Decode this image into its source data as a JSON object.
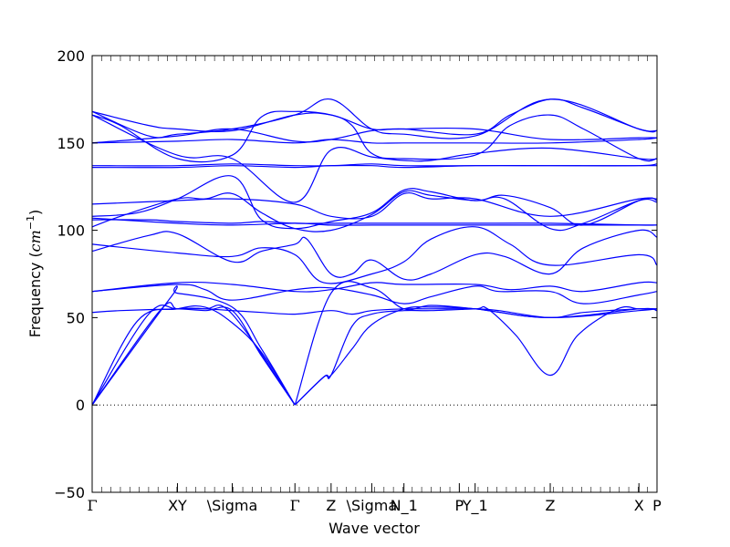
{
  "chart_data": {
    "type": "line",
    "title": "",
    "xlabel": "Wave vector",
    "ylabel": "Frequency ($cm^{-1}$)",
    "ylabel_parts": {
      "main": "Frequency (",
      "unit_base": "cm",
      "unit_exp": "−1",
      "close": ")"
    },
    "ylim": [
      -50,
      200
    ],
    "yticks": [
      -50,
      0,
      50,
      100,
      150,
      200
    ],
    "xlim": [
      0,
      1
    ],
    "xticks": [
      {
        "label": "Γ",
        "pos": 0.0
      },
      {
        "label": "XY",
        "pos": 0.151
      },
      {
        "label": "\\Sigma",
        "pos": 0.248
      },
      {
        "label": "Γ",
        "pos": 0.359
      },
      {
        "label": "Z",
        "pos": 0.423
      },
      {
        "label": "\\Sigma",
        "pos": 0.495
      },
      {
        "label": "N_1",
        "pos": 0.552
      },
      {
        "label": "P",
        "pos": 0.65
      },
      {
        "label": "Y_1",
        "pos": 0.678
      },
      {
        "label": "Z",
        "pos": 0.811
      },
      {
        "label": "X",
        "pos": 0.968
      },
      {
        "label": "P",
        "pos": 1.0
      }
    ],
    "zero_line": true,
    "line_color": "#0000ff",
    "series": [
      {
        "x": [
          0,
          0.1,
          0.151,
          0.2,
          0.248,
          0.359
        ],
        "y": [
          0,
          52,
          55,
          55,
          52,
          0
        ]
      },
      {
        "x": [
          0,
          0.12,
          0.151,
          0.2,
          0.248,
          0.3,
          0.359
        ],
        "y": [
          0,
          54,
          55,
          54,
          54,
          28,
          0
        ]
      },
      {
        "x": [
          0,
          0.08,
          0.151,
          0.2,
          0.248,
          0.3,
          0.359
        ],
        "y": [
          0,
          48,
          55,
          56,
          47,
          30,
          0
        ]
      },
      {
        "x": [
          0,
          0.14,
          0.151,
          0.248,
          0.3,
          0.359
        ],
        "y": [
          0,
          62,
          64,
          56,
          32,
          0
        ]
      },
      {
        "x": [
          0.359,
          0.41,
          0.423,
          0.46,
          0.495,
          0.552,
          0.6,
          0.678,
          0.7,
          0.75,
          0.811,
          0.86,
          0.93,
          0.968,
          1.0
        ],
        "y": [
          0,
          16,
          17,
          45,
          52,
          54,
          54,
          55,
          55,
          40,
          17,
          40,
          55,
          55,
          55
        ]
      },
      {
        "x": [
          0.359,
          0.41,
          0.423,
          0.46,
          0.495,
          0.552,
          0.6,
          0.678,
          0.811,
          0.968,
          1.0
        ],
        "y": [
          0,
          16,
          17,
          32,
          46,
          55,
          56,
          55,
          50,
          55,
          54
        ]
      },
      {
        "x": [
          0.359,
          0.423,
          0.495,
          0.552,
          0.6,
          0.678,
          0.811,
          0.968,
          1.0
        ],
        "y": [
          0,
          64,
          67,
          55,
          57,
          55,
          50,
          54,
          55
        ]
      },
      {
        "x": [
          0,
          0.05,
          0.151,
          0.2,
          0.248,
          0.3,
          0.359,
          0.423,
          0.46,
          0.495,
          0.552,
          0.6,
          0.678,
          0.72,
          0.811,
          0.87,
          0.968,
          1.0
        ],
        "y": [
          53,
          54,
          55,
          55,
          54,
          53,
          52,
          54,
          52,
          54,
          55,
          55,
          55,
          54,
          50,
          53,
          55,
          55
        ]
      },
      {
        "x": [
          0,
          0.151,
          0.248,
          0.359,
          0.423,
          0.495,
          0.552,
          0.678,
          0.74,
          0.811,
          0.87,
          0.968,
          1.0
        ],
        "y": [
          65,
          70,
          69,
          65,
          66,
          70,
          69,
          69,
          66,
          68,
          65,
          70,
          70
        ]
      },
      {
        "x": [
          0,
          0.151,
          0.2,
          0.248,
          0.359,
          0.423,
          0.495,
          0.552,
          0.6,
          0.678,
          0.72,
          0.811,
          0.87,
          0.968,
          1.0
        ],
        "y": [
          65,
          69,
          66,
          60,
          66,
          67,
          63,
          58,
          62,
          68,
          65,
          65,
          58,
          63,
          65
        ]
      },
      {
        "x": [
          0,
          0.1,
          0.151,
          0.248,
          0.3,
          0.359,
          0.38,
          0.423,
          0.46,
          0.495,
          0.552,
          0.6,
          0.678,
          0.73,
          0.811,
          0.87,
          0.968,
          1.0
        ],
        "y": [
          88,
          97,
          98,
          82,
          88,
          92,
          95,
          75,
          75,
          83,
          72,
          75,
          86,
          85,
          75,
          90,
          100,
          96
        ]
      },
      {
        "x": [
          0,
          0.151,
          0.248,
          0.3,
          0.359,
          0.41,
          0.495,
          0.552,
          0.6,
          0.678,
          0.74,
          0.811,
          0.968,
          1.0
        ],
        "y": [
          92,
          87,
          85,
          90,
          86,
          70,
          75,
          82,
          95,
          102,
          92,
          80,
          86,
          80
        ]
      },
      {
        "x": [
          0,
          0.151,
          0.248,
          0.359,
          0.423,
          0.495,
          0.552,
          0.6,
          0.678,
          0.811,
          0.968,
          1.0
        ],
        "y": [
          107,
          104,
          103,
          104,
          103,
          103,
          103,
          103,
          103,
          103,
          103,
          103
        ]
      },
      {
        "x": [
          0,
          0.1,
          0.151,
          0.248,
          0.3,
          0.359,
          0.423,
          0.495,
          0.552,
          0.6,
          0.678,
          0.811,
          0.968,
          1.0
        ],
        "y": [
          106,
          106,
          105,
          104,
          105,
          104,
          104,
          104,
          104,
          104,
          104,
          104,
          103,
          103
        ]
      },
      {
        "x": [
          0,
          0.05,
          0.151,
          0.2,
          0.248,
          0.3,
          0.359,
          0.423,
          0.495,
          0.552,
          0.6,
          0.678,
          0.73,
          0.811,
          0.87,
          0.968,
          1.0
        ],
        "y": [
          102,
          108,
          118,
          118,
          121,
          110,
          101,
          100,
          109,
          122,
          120,
          117,
          118,
          101,
          104,
          117,
          116
        ]
      },
      {
        "x": [
          0,
          0.151,
          0.248,
          0.359,
          0.423,
          0.495,
          0.552,
          0.6,
          0.678,
          0.811,
          0.968,
          1.0
        ],
        "y": [
          115,
          117,
          118,
          115,
          108,
          108,
          121,
          118,
          118,
          108,
          118,
          117
        ]
      },
      {
        "x": [
          0,
          0.08,
          0.151,
          0.248,
          0.3,
          0.359,
          0.423,
          0.495,
          0.552,
          0.6,
          0.678,
          0.73,
          0.811,
          0.87,
          0.968,
          1.0
        ],
        "y": [
          108,
          110,
          118,
          131,
          106,
          101,
          105,
          110,
          123,
          122,
          117,
          120,
          113,
          103,
          117,
          118
        ]
      },
      {
        "x": [
          0,
          0.151,
          0.248,
          0.359,
          0.423,
          0.495,
          0.552,
          0.678,
          0.811,
          0.968,
          1.0
        ],
        "y": [
          137,
          137,
          138,
          137,
          137,
          138,
          137,
          137,
          137,
          137,
          137
        ]
      },
      {
        "x": [
          0,
          0.151,
          0.248,
          0.359,
          0.423,
          0.495,
          0.552,
          0.678,
          0.811,
          0.968,
          1.0
        ],
        "y": [
          136,
          136,
          137,
          136,
          137,
          137,
          136,
          137,
          137,
          137,
          138
        ]
      },
      {
        "x": [
          0,
          0.151,
          0.248,
          0.359,
          0.423,
          0.495,
          0.552,
          0.678,
          0.811,
          0.968,
          1.0
        ],
        "y": [
          150,
          151,
          152,
          150,
          152,
          150,
          150,
          150,
          150,
          152,
          153
        ]
      },
      {
        "x": [
          0,
          0.151,
          0.248,
          0.359,
          0.423,
          0.495,
          0.552,
          0.678,
          0.811,
          0.968,
          1.0
        ],
        "y": [
          150,
          154,
          158,
          151,
          152,
          157,
          158,
          158,
          152,
          153,
          153
        ]
      },
      {
        "x": [
          0,
          0.1,
          0.151,
          0.248,
          0.359,
          0.423,
          0.495,
          0.552,
          0.678,
          0.74,
          0.811,
          0.87,
          0.968,
          1.0
        ],
        "y": [
          168,
          160,
          158,
          157,
          166,
          166,
          158,
          158,
          155,
          166,
          175,
          170,
          158,
          157
        ]
      },
      {
        "x": [
          0,
          0.05,
          0.151,
          0.248,
          0.3,
          0.359,
          0.423,
          0.46,
          0.495,
          0.552,
          0.678,
          0.74,
          0.811,
          0.87,
          0.968,
          1.0
        ],
        "y": [
          166,
          160,
          141,
          143,
          165,
          168,
          166,
          160,
          144,
          141,
          143,
          160,
          166,
          158,
          141,
          141
        ]
      },
      {
        "x": [
          0,
          0.151,
          0.248,
          0.359,
          0.423,
          0.495,
          0.552,
          0.6,
          0.678,
          0.811,
          0.968,
          1.0
        ],
        "y": [
          166,
          143,
          141,
          116,
          146,
          142,
          140,
          140,
          144,
          147,
          141,
          141
        ]
      },
      {
        "x": [
          0,
          0.1,
          0.151,
          0.248,
          0.359,
          0.423,
          0.495,
          0.552,
          0.678,
          0.811,
          0.968,
          1.0
        ],
        "y": [
          168,
          154,
          155,
          158,
          166,
          175,
          158,
          155,
          154,
          175,
          158,
          157
        ]
      }
    ]
  }
}
